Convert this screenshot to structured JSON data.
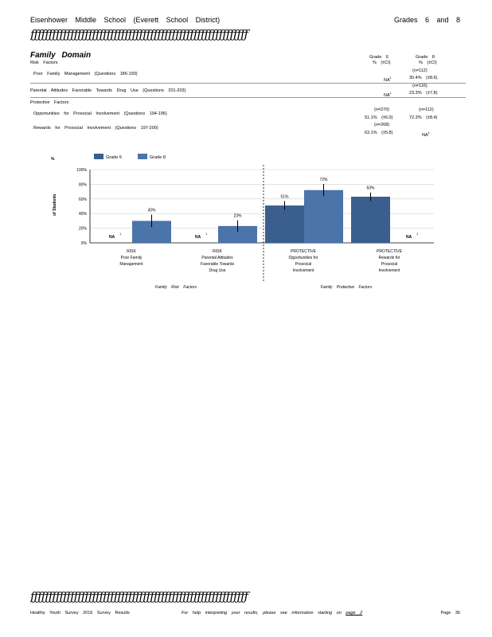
{
  "header": {
    "left": "Eisenhower Middle School (Everett School District)",
    "right": "Grades 6 and 8",
    "rule": "ƒƒƒƒƒƒƒƒƒƒƒƒƒƒƒƒƒƒƒƒƒƒƒƒƒƒƒƒƒƒƒƒƒƒƒƒƒƒƒƒƒƒƒƒƒƒƒƒƒƒƒƒƒƒƒƒƒƒƒƒ"
  },
  "section": {
    "title": "Family Domain",
    "col_grade6": "Grade 6",
    "col_grade8": "Grade 8",
    "col_sub6": "% (±CI)",
    "col_sub8": "% (±CI)"
  },
  "table": {
    "risk_heading": "Risk Factors",
    "protective_heading": "Protective Factors",
    "rows": [
      {
        "label": "Poor Family Management (Questions 186-193)",
        "g6_n": "",
        "g6": "NA",
        "g6_sup": "1",
        "g8_n": "(n=112)",
        "g8": "30.4% (±8.6)"
      },
      {
        "label": "Parental Attitudes Favorable Towards Drug Use (Questions 201-203)",
        "g6_n": "",
        "g6": "NA",
        "g6_sup": "1",
        "g8_n": "(n=116)",
        "g8": "23.3% (±7.8)"
      },
      {
        "label": "Opportunities for Prosocial Involvement (Questions 194-196)",
        "g6_n": "(n=270)",
        "g6": "51.1% (±6.0)",
        "g6_sup": "",
        "g8_n": "(n=112)",
        "g8": "72.3% (±8.4)"
      },
      {
        "label": "Rewards for Prosocial Involvement (Questions 197-200)",
        "g6_n": "(n=268)",
        "g6": "63.1% (±5.8)",
        "g6_sup": "",
        "g8_n": "",
        "g8": "NA",
        "g8_sup": "1"
      }
    ]
  },
  "chart_data": {
    "type": "bar",
    "ylabel_top": "%",
    "ylabel": "of Students",
    "ylim": [
      0,
      100
    ],
    "yticks": [
      "0%",
      "20%",
      "40%",
      "60%",
      "80%",
      "100%"
    ],
    "legend": [
      {
        "name": "Grade 6",
        "color": "#3a5f8f"
      },
      {
        "name": "Grade 8",
        "color": "#4a74aa"
      }
    ],
    "categories": [
      [
        "RISK",
        "Poor Family",
        "Management"
      ],
      [
        "RISK",
        "Parental Attitudes",
        "Favorable Towards",
        "Drug Use"
      ],
      [
        "PROTECTIVE",
        "Opportunities for",
        "Prosocial",
        "Involvement"
      ],
      [
        "PROTECTIVE",
        "Rewards for",
        "Prosocial",
        "Involvement"
      ]
    ],
    "series": [
      {
        "name": "Grade 6",
        "values": [
          null,
          null,
          51,
          63
        ],
        "labels": [
          "NA",
          "NA",
          "51%",
          "63%"
        ],
        "err": [
          0,
          0,
          6.0,
          5.8
        ]
      },
      {
        "name": "Grade 8",
        "values": [
          30,
          23,
          72,
          null
        ],
        "labels": [
          "30%",
          "23%",
          "72%",
          "NA"
        ],
        "err": [
          8.6,
          7.8,
          8.4,
          0
        ]
      }
    ],
    "na_sup": "1",
    "group_labels": [
      "Family Risk Factors",
      "Family Protective Factors"
    ]
  },
  "footer": {
    "left": "Healthy Youth Survey 2016 Survey Results",
    "middle": "For help interpreting your results, please see information starting on",
    "link": "page 2",
    "right": "Page 36"
  }
}
